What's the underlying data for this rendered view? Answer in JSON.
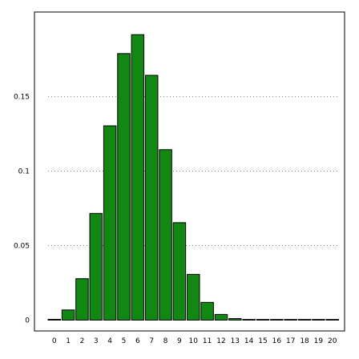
{
  "chart_data": {
    "type": "bar",
    "categories": [
      "0",
      "1",
      "2",
      "3",
      "4",
      "5",
      "6",
      "7",
      "8",
      "9",
      "10",
      "11",
      "12",
      "13",
      "14",
      "15",
      "16",
      "17",
      "18",
      "19",
      "20"
    ],
    "values": [
      0.0005,
      0.0068,
      0.0278,
      0.0716,
      0.1304,
      0.1789,
      0.1916,
      0.1643,
      0.1144,
      0.0654,
      0.0307,
      0.0119,
      0.0038,
      0.001,
      0.0002,
      4e-05,
      1e-05,
      0,
      0,
      0,
      0
    ],
    "y_ticks": [
      {
        "value": 0,
        "label": "0"
      },
      {
        "value": 0.05,
        "label": "0.05"
      },
      {
        "value": 0.1,
        "label": "0.1"
      },
      {
        "value": 0.15,
        "label": "0.15"
      }
    ],
    "ylim": [
      -0.0073,
      0.2068
    ],
    "grid": "horizontal dotted",
    "colors": {
      "bar_fill": "#118811",
      "bar_edge": "#000000",
      "grid": "#8a8a8a",
      "frame": "#000000"
    }
  }
}
